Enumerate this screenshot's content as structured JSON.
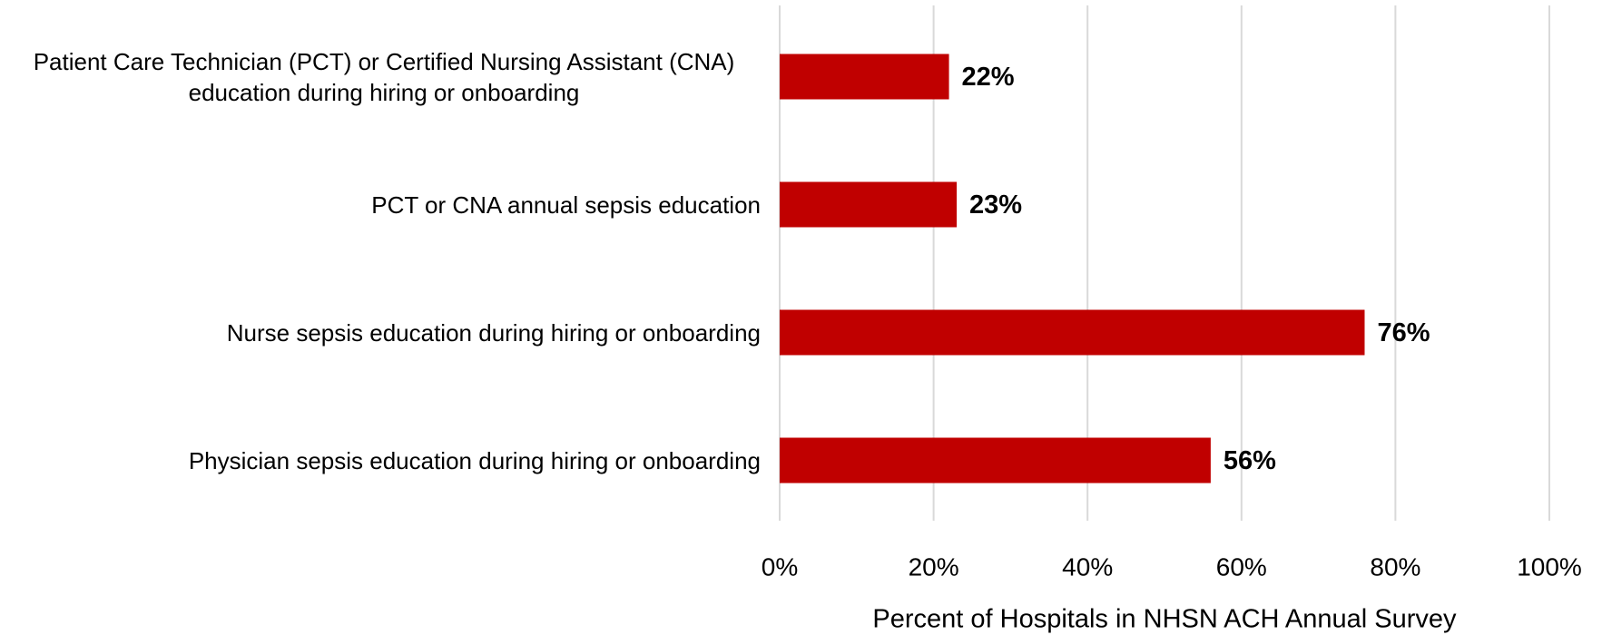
{
  "chart_data": {
    "type": "barh",
    "categories": [
      "Patient Care Technician (PCT) or Certified Nursing Assistant (CNA) education during hiring or onboarding",
      "PCT or CNA annual sepsis education",
      "Nurse sepsis education during hiring or onboarding",
      "Physician sepsis education during hiring or onboarding"
    ],
    "values": [
      22,
      23,
      76,
      56
    ],
    "value_labels": [
      "22%",
      "23%",
      "76%",
      "56%"
    ],
    "color": "#c00000",
    "xlim": [
      0,
      100
    ],
    "xticks": [
      {
        "value": 0,
        "label": "0%"
      },
      {
        "value": 20,
        "label": "20%"
      },
      {
        "value": 40,
        "label": "40%"
      },
      {
        "value": 60,
        "label": "60%"
      },
      {
        "value": 80,
        "label": "80%"
      },
      {
        "value": 100,
        "label": "100%"
      }
    ],
    "xlabel": "Percent of Hospitals in NHSN ACH Annual Survey",
    "grid": true
  }
}
